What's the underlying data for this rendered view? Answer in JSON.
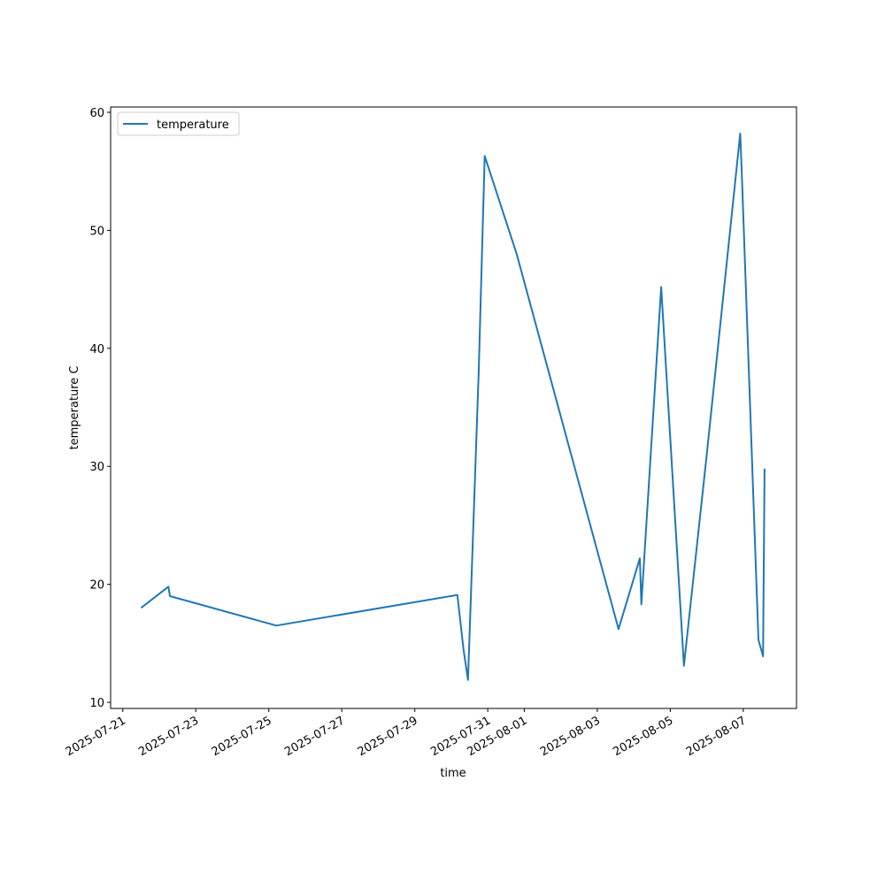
{
  "chart_data": {
    "type": "line",
    "xlabel": "time",
    "ylabel": "temperature C",
    "x": [
      "2025-07-21T12:00",
      "2025-07-22T06:00",
      "2025-07-22T07:00",
      "2025-07-25T05:00",
      "2025-07-30T04:00",
      "2025-07-30T08:00",
      "2025-07-30T11:00",
      "2025-07-30T18:00",
      "2025-07-30T22:00",
      "2025-07-31T19:00",
      "2025-08-03T14:00",
      "2025-08-04T04:00",
      "2025-08-04T05:00",
      "2025-08-04T18:00",
      "2025-08-05T09:00",
      "2025-08-06T00:00",
      "2025-08-06T22:00",
      "2025-08-06T23:00",
      "2025-08-07T10:00",
      "2025-08-07T13:00",
      "2025-08-07T14:00"
    ],
    "series": [
      {
        "name": "temperature",
        "color": "#1f77b4",
        "values": [
          18.0,
          19.8,
          19.0,
          16.5,
          19.1,
          14.5,
          11.9,
          38.0,
          56.3,
          48.0,
          16.2,
          22.2,
          18.3,
          45.2,
          13.1,
          31.0,
          58.2,
          55.0,
          15.3,
          13.9,
          29.8
        ]
      }
    ],
    "xlim": [
      "2025-07-20T16:00",
      "2025-08-08T11:00"
    ],
    "xticks": [
      "2025-07-21",
      "2025-07-23",
      "2025-07-25",
      "2025-07-27",
      "2025-07-29",
      "2025-07-31",
      "2025-08-01",
      "2025-08-03",
      "2025-08-05",
      "2025-08-07"
    ],
    "ylim": [
      9.48,
      60.45
    ],
    "yticks": [
      10,
      20,
      30,
      40,
      50,
      60
    ],
    "grid": false,
    "legend": "upper left"
  }
}
